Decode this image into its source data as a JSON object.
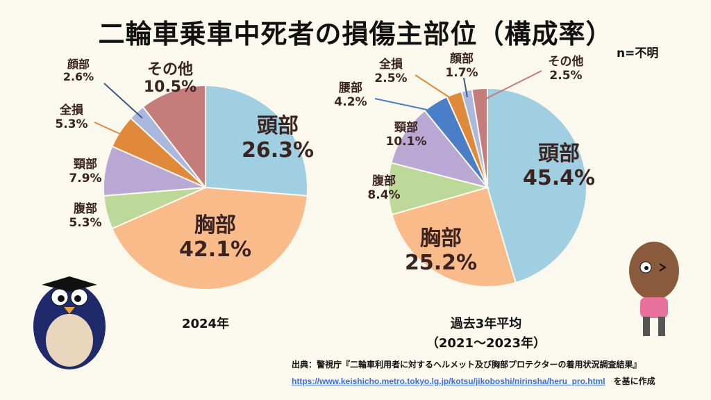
{
  "title": "二輪車乗車中死者の損傷主部位（構成率）",
  "note": "n=不明",
  "colors": {
    "頭部": "#9fcfe0",
    "胸部": "#f9bb8a",
    "腹部": "#bcd99a",
    "頸部": "#b9a7d4",
    "腰部": "#4a7fc7",
    "全損": "#e0893b",
    "顔部": "#a9b8dc",
    "その他": "#c47d7b"
  },
  "chart_data": [
    {
      "type": "pie",
      "caption": "2024年",
      "unit": "%",
      "labels": [
        "頭部",
        "胸部",
        "腹部",
        "頸部",
        "全損",
        "顔部",
        "その他"
      ],
      "values": [
        26.3,
        42.1,
        5.3,
        7.9,
        5.3,
        2.6,
        10.5
      ],
      "display": [
        "26.3%",
        "42.1%",
        "5.3%",
        "7.9%",
        "5.3%",
        "2.6%",
        "10.5%"
      ]
    },
    {
      "type": "pie",
      "caption": "過去3年平均",
      "caption2": "（2021～2023年）",
      "unit": "%",
      "labels": [
        "頭部",
        "胸部",
        "腹部",
        "頸部",
        "腰部",
        "全損",
        "顔部",
        "その他"
      ],
      "values": [
        45.4,
        25.2,
        8.4,
        10.1,
        4.2,
        2.5,
        1.7,
        2.5
      ],
      "display": [
        "45.4%",
        "25.2%",
        "8.4%",
        "10.1%",
        "4.2%",
        "2.5%",
        "1.7%",
        "2.5%"
      ]
    }
  ],
  "source": {
    "text": "出典：警視庁『二輪車利用者に対するヘルメット及び胸部プロテクターの着用状況調査結果』",
    "url": "https://www.keishicho.metro.tokyo.lg.jp/kotsu/jikoboshi/nirinsha/heru_pro.html",
    "suffix": "を基に作成"
  }
}
